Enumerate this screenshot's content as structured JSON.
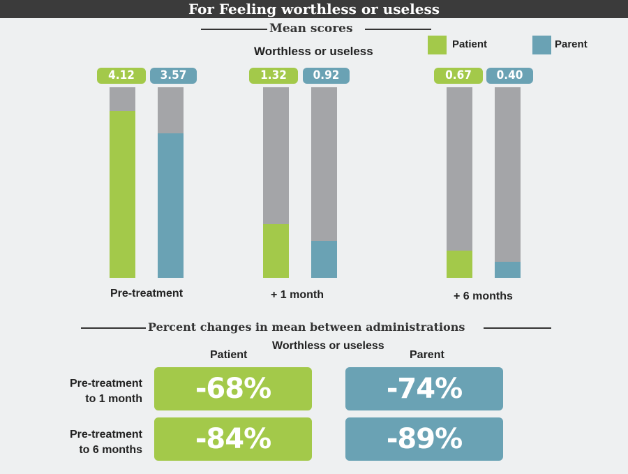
{
  "title": "For Feeling worthless or useless",
  "colors": {
    "patient": "#a3c94a",
    "parent": "#6aa2b4",
    "remainder": "#a4a5a8",
    "title_bg": "#3b3b3b"
  },
  "chart_data": {
    "type": "bar",
    "section_title": "Mean scores",
    "title": "Worthless or useless",
    "categories": [
      "Pre-treatment",
      "+ 1 month",
      "+ 6 months"
    ],
    "series": [
      {
        "name": "Patient",
        "values": [
          4.12,
          1.32,
          0.67
        ],
        "labels": [
          "4.12",
          "1.32",
          "0.67"
        ]
      },
      {
        "name": "Parent",
        "values": [
          3.57,
          0.92,
          0.4
        ],
        "labels": [
          "3.57",
          "0.92",
          "0.40"
        ]
      }
    ],
    "ylim": [
      0,
      4.7
    ],
    "legend": [
      "Patient",
      "Parent"
    ],
    "legend_position": "top-right"
  },
  "percent_changes": {
    "section_title": "Percent changes in mean between administrations",
    "subtitle": "Worthless or useless",
    "columns": [
      "Patient",
      "Parent"
    ],
    "rows": [
      {
        "label_line1": "Pre-treatment",
        "label_line2": "to 1 month",
        "patient": "-68%",
        "parent": "-74%"
      },
      {
        "label_line1": "Pre-treatment",
        "label_line2": "to 6 months",
        "patient": "-84%",
        "parent": "-89%"
      }
    ]
  }
}
